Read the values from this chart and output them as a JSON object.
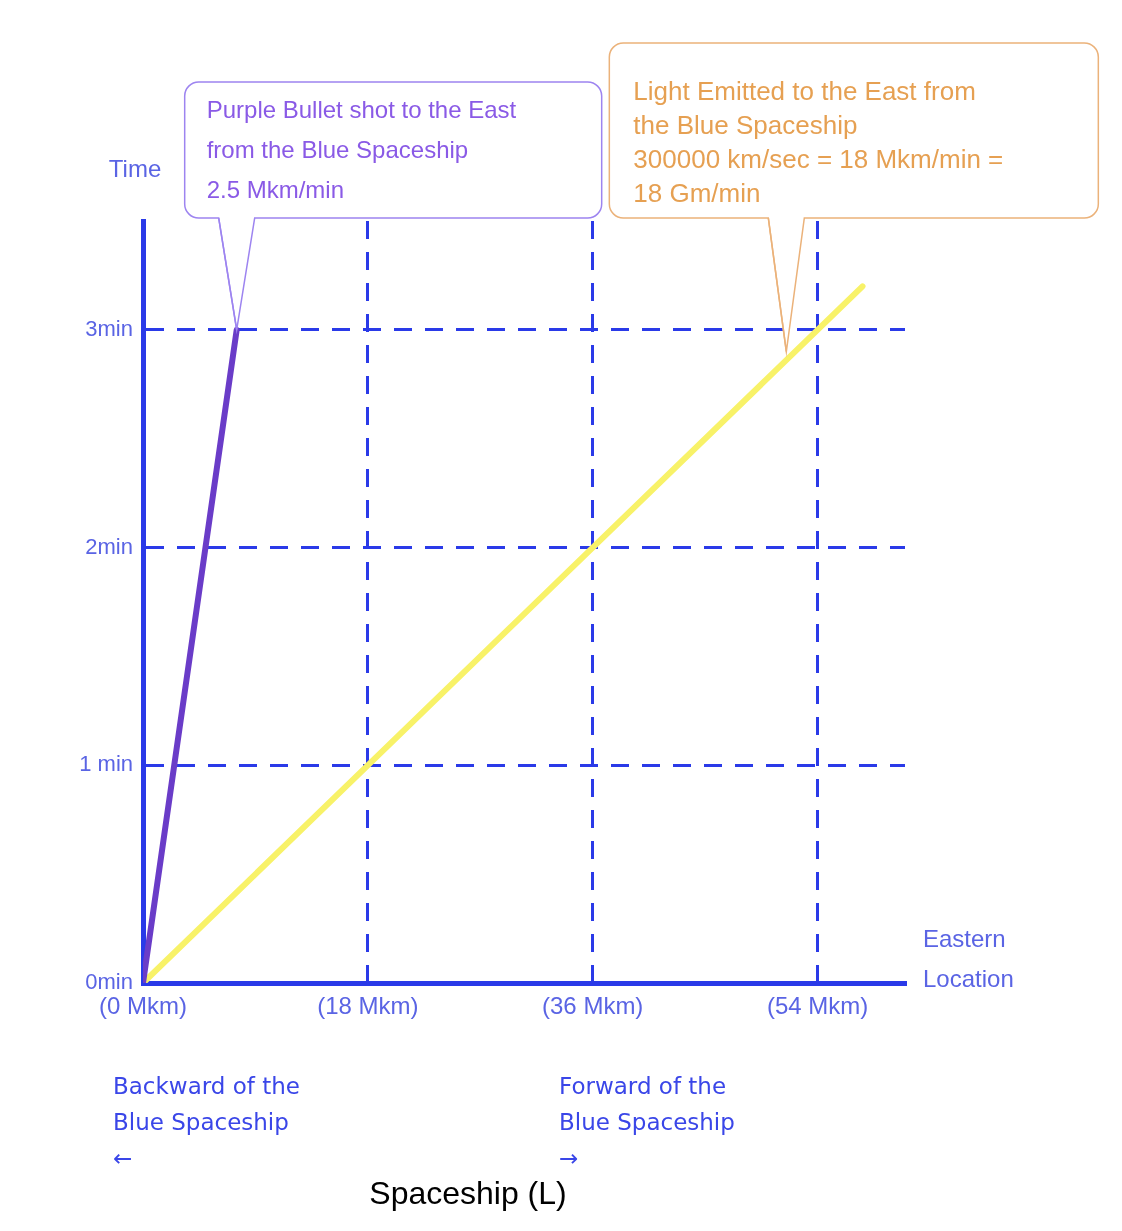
{
  "chart_data": {
    "type": "line",
    "title": "Spaceship (L)",
    "xlabel": "Eastern Location",
    "ylabel": "Time",
    "series": [
      {
        "color": "#6a3cc8",
        "x": [
          0,
          7.5
        ],
        "values": [
          0,
          3
        ]
      },
      {
        "color": "#f8f268",
        "x": [
          0,
          57.6
        ],
        "values": [
          0,
          3.2
        ]
      }
    ],
    "xlim": [
      0,
      61
    ],
    "ylim": [
      0,
      3.5
    ],
    "xticks": [
      {
        "value": 0,
        "label": "(0 Mkm)"
      },
      {
        "value": 18,
        "label": "(18 Mkm)"
      },
      {
        "value": 36,
        "label": "(36 Mkm)"
      },
      {
        "value": 54,
        "label": "(54 Mkm)"
      }
    ],
    "yticks": [
      {
        "value": 0,
        "label": "0min"
      },
      {
        "value": 1,
        "label": "1 min"
      },
      {
        "value": 2,
        "label": "2min"
      },
      {
        "value": 3,
        "label": "3min"
      }
    ],
    "grid": true,
    "annotations": [
      {
        "text": "Purple Bullet shot to the East\nfrom the Blue Spaceship\n2.5 Mkm/min",
        "x": 7.5,
        "y": 3
      },
      {
        "text": "Light Emitted to the East from\nthe Blue Spaceship\n300000 km/sec = 18 Mkm/min =\n18 Gm/min",
        "x": 51.5,
        "y": 2.9
      },
      "Backward of the\nBlue Spaceship\n←",
      "Forward of the\nBlue Spaceship\n→"
    ]
  }
}
